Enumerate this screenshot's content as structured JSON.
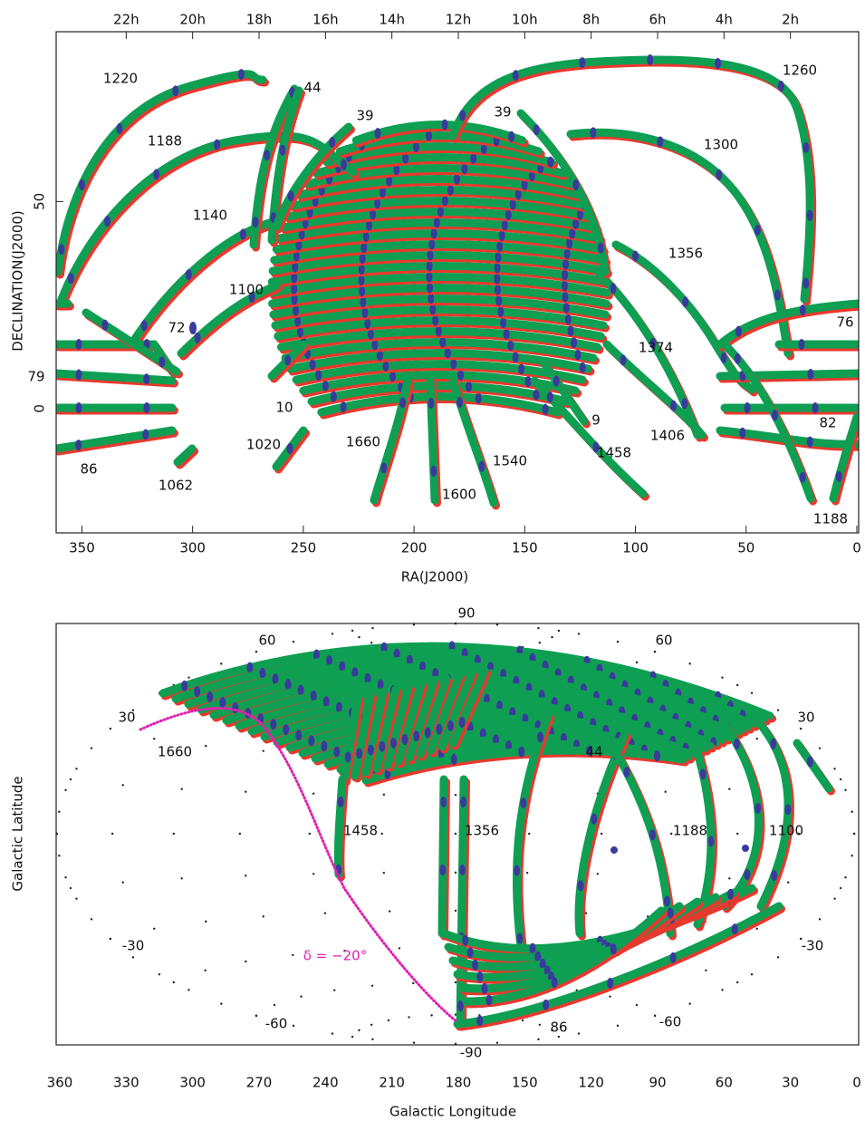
{
  "chart_data": [
    {
      "type": "skymap",
      "x_label": "RA(J2000)",
      "y_label": "DECLINATION(J2000)",
      "xlim": [
        360,
        0
      ],
      "xticks": [
        350,
        300,
        250,
        200,
        150,
        100,
        50,
        0
      ],
      "x2ticks": [
        {
          "value": 330,
          "label": "22h"
        },
        {
          "value": 300,
          "label": "20h"
        },
        {
          "value": 270,
          "label": "18h"
        },
        {
          "value": 240,
          "label": "16h"
        },
        {
          "value": 210,
          "label": "14h"
        },
        {
          "value": 180,
          "label": "12h"
        },
        {
          "value": 150,
          "label": "10h"
        },
        {
          "value": 120,
          "label": "8h"
        },
        {
          "value": 90,
          "label": "6h"
        },
        {
          "value": 60,
          "label": "4h"
        },
        {
          "value": 30,
          "label": "2h"
        }
      ],
      "ylim": [
        -30,
        91
      ],
      "yticks": [
        0,
        50
      ],
      "annotations": [
        "1220",
        "44",
        "39",
        "39",
        "1260",
        "1188",
        "1300",
        "1140",
        "1356",
        "1100",
        "72",
        "76",
        "79",
        "1374",
        "10",
        "9",
        "82",
        "1406",
        "1020",
        "1660",
        "1458",
        "86",
        "1540",
        "1062",
        "1600",
        "1188"
      ],
      "track_colors": [
        "#e8392f",
        "#0e9f52"
      ],
      "point_color": "#3a3a9c"
    },
    {
      "type": "aitoff",
      "x_label": "Galactic Longitude",
      "y_label": "Galactic Latitude",
      "xlim": [
        360,
        0
      ],
      "xticks": [
        360,
        330,
        300,
        270,
        240,
        210,
        180,
        150,
        120,
        90,
        60,
        30,
        0
      ],
      "graticule_labels": [
        "90",
        "-90",
        "60",
        "60",
        "30",
        "30",
        "-30",
        "-30",
        "-60",
        "-60"
      ],
      "annotations": [
        "1660",
        "44",
        "1458",
        "1356",
        "1188",
        "1100",
        "86"
      ],
      "curve_label": "δ = −20°",
      "curve_color": "#e020b0",
      "track_colors": [
        "#e8392f",
        "#0e9f52"
      ],
      "point_color": "#3a3a9c"
    }
  ]
}
